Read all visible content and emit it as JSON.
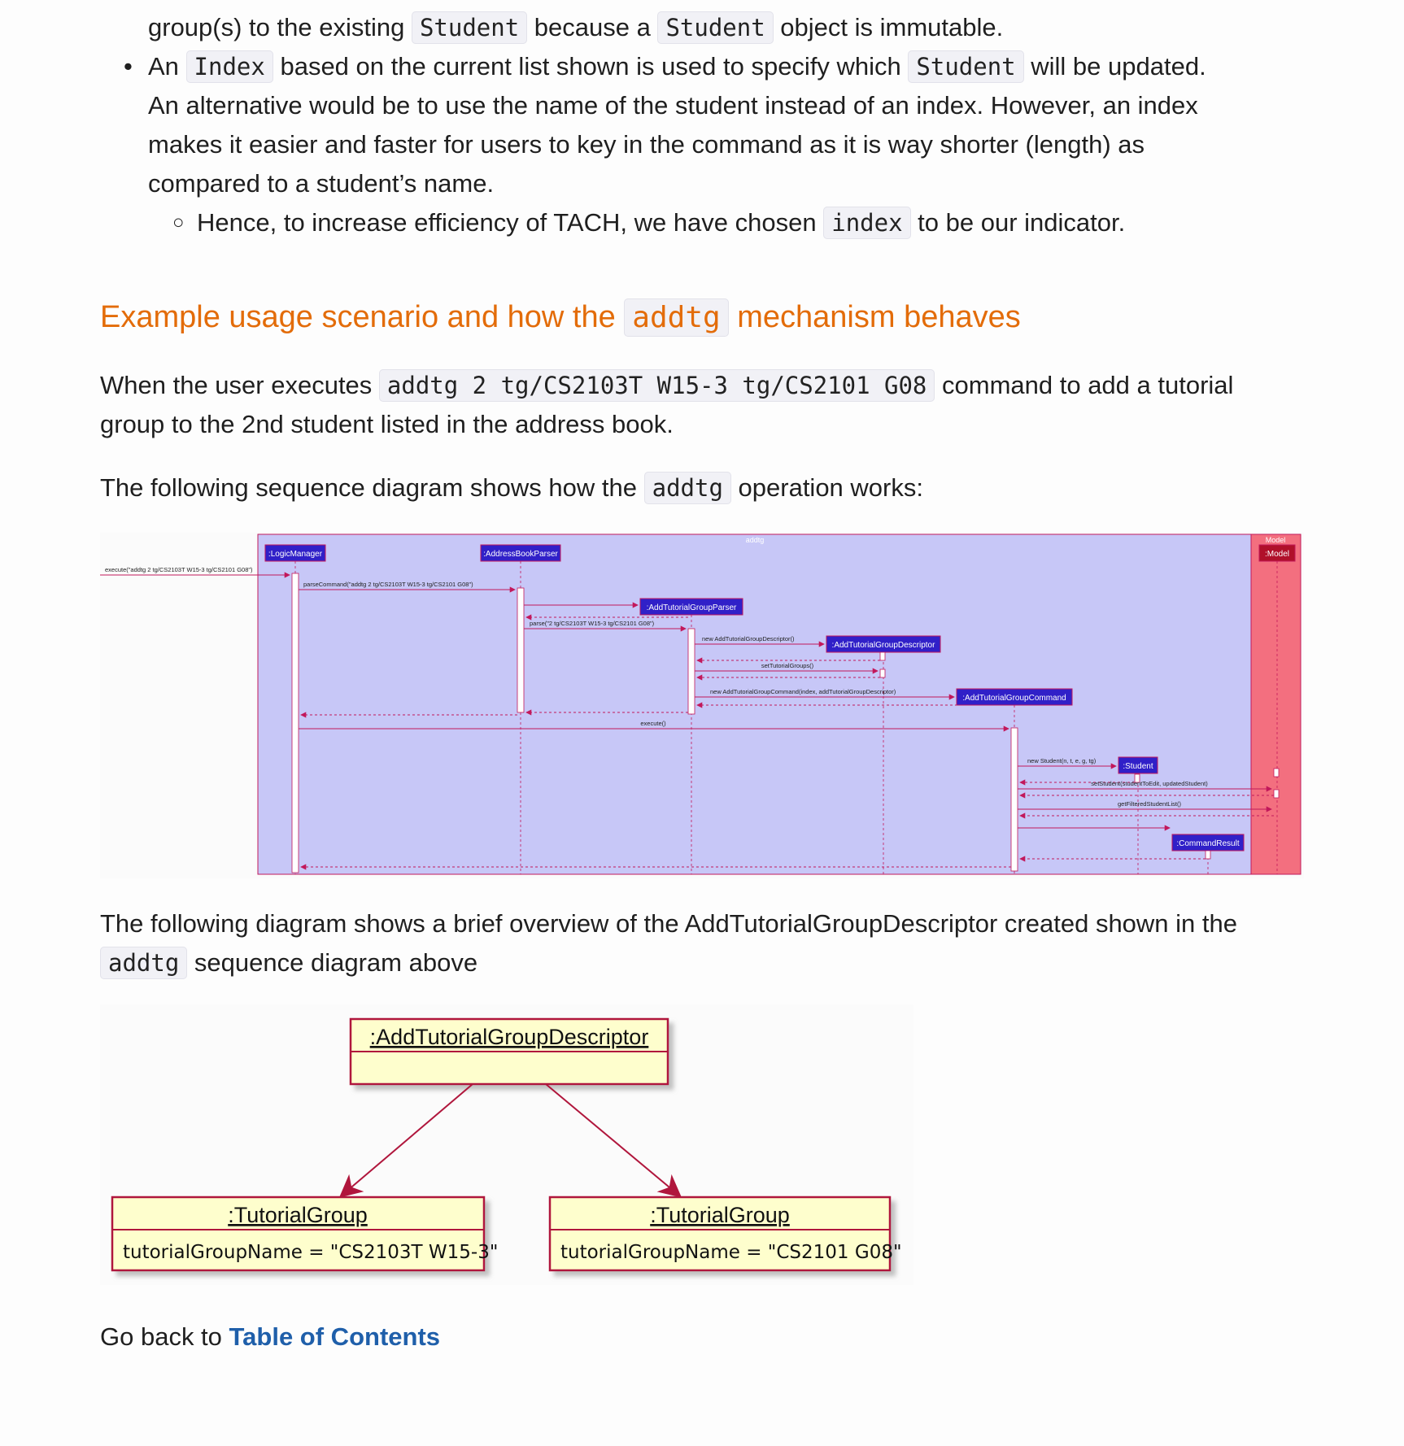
{
  "intro": {
    "line1_a": "group(s) to the existing ",
    "line1_code1": "Student",
    "line1_b": " because a ",
    "line1_code2": "Student",
    "line1_c": " object is immutable.",
    "bullet2_a": "An ",
    "bullet2_code1": "Index",
    "bullet2_b": " based on the current list shown is used to specify which ",
    "bullet2_code2": "Student",
    "bullet2_c": " will be updated.",
    "bullet2_line2": "An alternative would be to use the name of the student instead of an index. However, an index",
    "bullet2_line3": "makes it easier and faster for users to key in the command as it is way shorter (length) as",
    "bullet2_line4": "compared to a student’s name.",
    "sub_a": "Hence, to increase efficiency of TACH, we have chosen ",
    "sub_code": "index",
    "sub_b": " to be our indicator."
  },
  "section": {
    "title_a": "Example usage scenario and how the ",
    "title_code": "addtg",
    "title_b": " mechanism behaves"
  },
  "para1": {
    "a": "When the user executes ",
    "code": "addtg 2 tg/CS2103T W15-3 tg/CS2101 G08",
    "b": " command to add a tutorial",
    "line2": "group to the 2nd student listed in the address book."
  },
  "para2": {
    "a": "The following sequence diagram shows how the ",
    "code": "addtg",
    "b": " operation works:"
  },
  "sequence_diagram": {
    "frame_logic": "addtg",
    "frame_model": "Model",
    "participants": {
      "logic_manager": ":LogicManager",
      "address_book_parser": ":AddressBookParser",
      "add_tg_parser": ":AddTutorialGroupParser",
      "add_tg_descriptor": ":AddTutorialGroupDescriptor",
      "add_tg_command": ":AddTutorialGroupCommand",
      "student": ":Student",
      "command_result": ":CommandResult",
      "model": ":Model"
    },
    "messages": {
      "execute_in": "execute(\"addtg 2 tg/CS2103T W15-3 tg/CS2101 G08\")",
      "parse_command": "parseCommand(\"addtg 2 tg/CS2103T W15-3 tg/CS2101 G08\")",
      "parse": "parse(\"2 tg/CS2103T W15-3 tg/CS2101 G08\")",
      "new_descriptor": "new AddTutorialGroupDescriptor()",
      "set_tutorial_groups": "setTutorialGroups()",
      "new_command": "new AddTutorialGroupCommand(index, addTutorialGroupDescriptor)",
      "execute": "execute()",
      "new_student": "new Student(n, t, e, g, tg)",
      "set_student": "setStudent(studentToEdit, updatedStudent)",
      "get_filtered": "getFilteredStudentList()"
    }
  },
  "para3": {
    "line1": "The following diagram shows a brief overview of the AddTutorialGroupDescriptor created shown in the",
    "code": "addtg",
    "b": " sequence diagram above"
  },
  "object_diagram": {
    "descriptor": ":AddTutorialGroupDescriptor",
    "tg1_title": ":TutorialGroup",
    "tg1_attr": "tutorialGroupName = \"CS2103T W15-3\"",
    "tg2_title": ":TutorialGroup",
    "tg2_attr": "tutorialGroupName = \"CS2101 G08\""
  },
  "footer": {
    "prefix": "Go back to ",
    "link": "Table of Contents"
  }
}
